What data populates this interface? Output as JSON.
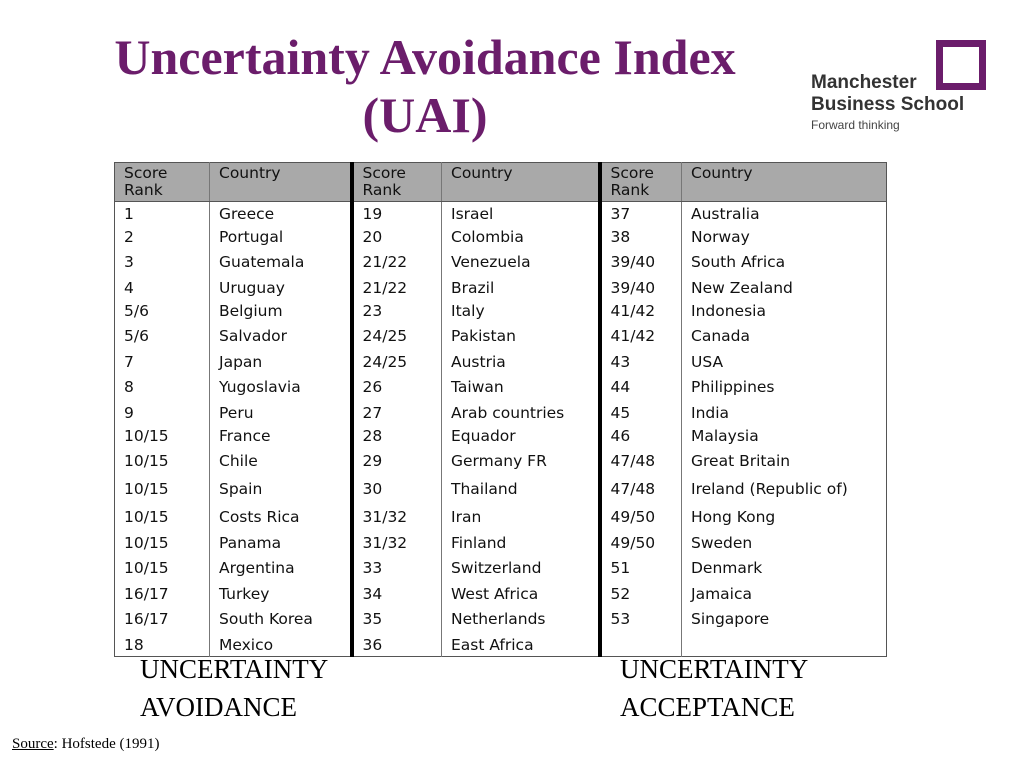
{
  "title": {
    "line1": "Uncertainty Avoidance Index",
    "line2": "(UAI)"
  },
  "logo": {
    "line1": "Manchester",
    "line2": "Business School",
    "tagline": "Forward thinking",
    "icon": "square-outline-icon",
    "accent": "#6b1d6b"
  },
  "table": {
    "headers": {
      "rank_line1": "Score",
      "rank_line2": "Rank",
      "country": "Country"
    },
    "rows": [
      {
        "r1": "1",
        "c1": "Greece",
        "r2": "19",
        "c2": "Israel",
        "r3": "37",
        "c3": "Australia"
      },
      {
        "r1": "2",
        "c1": "Portugal",
        "r2": "20",
        "c2": "Colombia",
        "r3": "38",
        "c3": "Norway"
      },
      {
        "r1": "3",
        "c1": "Guatemala",
        "r2": "21/22",
        "c2": "Venezuela",
        "r3": "39/40",
        "c3": "South Africa"
      },
      {
        "r1": "4",
        "c1": "Uruguay",
        "r2": "21/22",
        "c2": "Brazil",
        "r3": "39/40",
        "c3": "New Zealand"
      },
      {
        "r1": "5/6",
        "c1": "Belgium",
        "r2": "23",
        "c2": "Italy",
        "r3": "41/42",
        "c3": "Indonesia"
      },
      {
        "r1": "5/6",
        "c1": "Salvador",
        "r2": "24/25",
        "c2": "Pakistan",
        "r3": "41/42",
        "c3": "Canada"
      },
      {
        "r1": "7",
        "c1": "Japan",
        "r2": "24/25",
        "c2": "Austria",
        "r3": "43",
        "c3": "USA"
      },
      {
        "r1": "8",
        "c1": "Yugoslavia",
        "r2": "26",
        "c2": "Taiwan",
        "r3": "44",
        "c3": "Philippines"
      },
      {
        "r1": "9",
        "c1": "Peru",
        "r2": "27",
        "c2": "Arab countries",
        "r3": "45",
        "c3": "India"
      },
      {
        "r1": "10/15",
        "c1": "France",
        "r2": "28",
        "c2": "Equador",
        "r3": "46",
        "c3": "Malaysia"
      },
      {
        "r1": "10/15",
        "c1": "Chile",
        "r2": "29",
        "c2": "Germany FR",
        "r3": "47/48",
        "c3": "Great Britain"
      },
      {
        "r1": "10/15",
        "c1": "Spain",
        "r2": "30",
        "c2": "Thailand",
        "r3": "47/48",
        "c3": "Ireland (Republic of)"
      },
      {
        "r1": "10/15",
        "c1": "Costs Rica",
        "r2": "31/32",
        "c2": "Iran",
        "r3": "49/50",
        "c3": "Hong Kong"
      },
      {
        "r1": "10/15",
        "c1": "Panama",
        "r2": "31/32",
        "c2": "Finland",
        "r3": "49/50",
        "c3": "Sweden"
      },
      {
        "r1": "10/15",
        "c1": "Argentina",
        "r2": "33",
        "c2": "Switzerland",
        "r3": "51",
        "c3": "Denmark"
      },
      {
        "r1": "16/17",
        "c1": "Turkey",
        "r2": "34",
        "c2": "West Africa",
        "r3": "52",
        "c3": "Jamaica"
      },
      {
        "r1": "16/17",
        "c1": "South Korea",
        "r2": "35",
        "c2": "Netherlands",
        "r3": "53",
        "c3": "Singapore"
      },
      {
        "r1": "18",
        "c1": "Mexico",
        "r2": "36",
        "c2": "East Africa",
        "r3": "",
        "c3": ""
      }
    ]
  },
  "footer": {
    "left_line1": "UNCERTAINTY",
    "left_line2": "AVOIDANCE",
    "right_line1": "UNCERTAINTY",
    "right_line2": "ACCEPTANCE"
  },
  "source": {
    "label": "Source",
    "text": ": Hofstede (1991)"
  }
}
